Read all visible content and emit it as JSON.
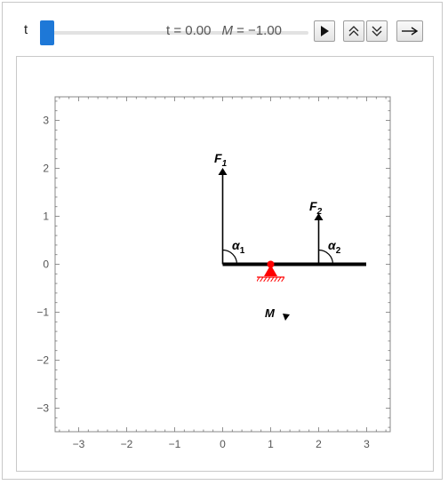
{
  "controls": {
    "parameter_label": "t",
    "slider_value": 0.0
  },
  "plot": {
    "title_t_label": "t",
    "title_t_value": "= 0.00",
    "title_m_label": "M",
    "title_m_value": "= −1.00",
    "x_ticks": [
      "−3",
      "−2",
      "−1",
      "0",
      "1",
      "2",
      "3"
    ],
    "y_ticks": [
      "3",
      "2",
      "1",
      "0",
      "−1",
      "−2",
      "−3"
    ],
    "labels": {
      "f1": "F",
      "f1_sub": "1",
      "f2": "F",
      "f2_sub": "2",
      "alpha1": "α",
      "alpha1_sub": "1",
      "alpha2": "α",
      "alpha2_sub": "2",
      "moment": "M"
    },
    "colors": {
      "support": "#ff0000",
      "beam": "#000000",
      "axes": "#555555"
    }
  },
  "chart_data": {
    "type": "diagram",
    "xlim": [
      -3.5,
      3.5
    ],
    "ylim": [
      -3.5,
      3.5
    ],
    "beam": {
      "from": [
        0,
        0
      ],
      "to": [
        3,
        0
      ]
    },
    "support": {
      "at": [
        1,
        0
      ],
      "kind": "pin"
    },
    "forces": [
      {
        "name": "F1",
        "at": [
          0,
          0
        ],
        "magnitude": 2,
        "angle_deg": 90
      },
      {
        "name": "F2",
        "at": [
          2,
          0
        ],
        "magnitude": 1,
        "angle_deg": 90
      }
    ],
    "moment": {
      "name": "M",
      "value": -1.0,
      "at": [
        1,
        -1
      ]
    },
    "t": 0.0
  }
}
